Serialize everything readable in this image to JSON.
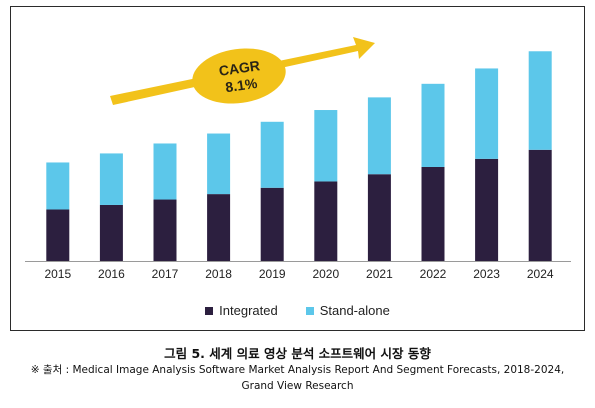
{
  "chart_data": {
    "type": "bar",
    "stacked": true,
    "categories": [
      "2015",
      "2016",
      "2017",
      "2018",
      "2019",
      "2020",
      "2021",
      "2022",
      "2023",
      "2024"
    ],
    "series": [
      {
        "name": "Integrated",
        "color": "#2c1f3f",
        "values": [
          0.57,
          0.62,
          0.68,
          0.74,
          0.81,
          0.88,
          0.96,
          1.04,
          1.13,
          1.23
        ]
      },
      {
        "name": "Stand-alone",
        "color": "#5cc7ea",
        "values": [
          0.52,
          0.57,
          0.62,
          0.67,
          0.73,
          0.79,
          0.85,
          0.92,
          1.0,
          1.09
        ]
      }
    ],
    "annotation": {
      "label_line1": "CAGR",
      "label_line2": "8.1%",
      "arrow_color": "#f2c21a"
    },
    "ylim": [
      0,
      2.5
    ],
    "grid": false,
    "legend_position": "bottom"
  },
  "caption": {
    "title": "그림 5. 세계 의료 영상 분석 소프트웨어 시장 동향",
    "source_line1": "※ 출처 : Medical Image Analysis Software Market Analysis Report And Segment Forecasts, 2018-2024,",
    "source_line2": "Grand View Research"
  }
}
